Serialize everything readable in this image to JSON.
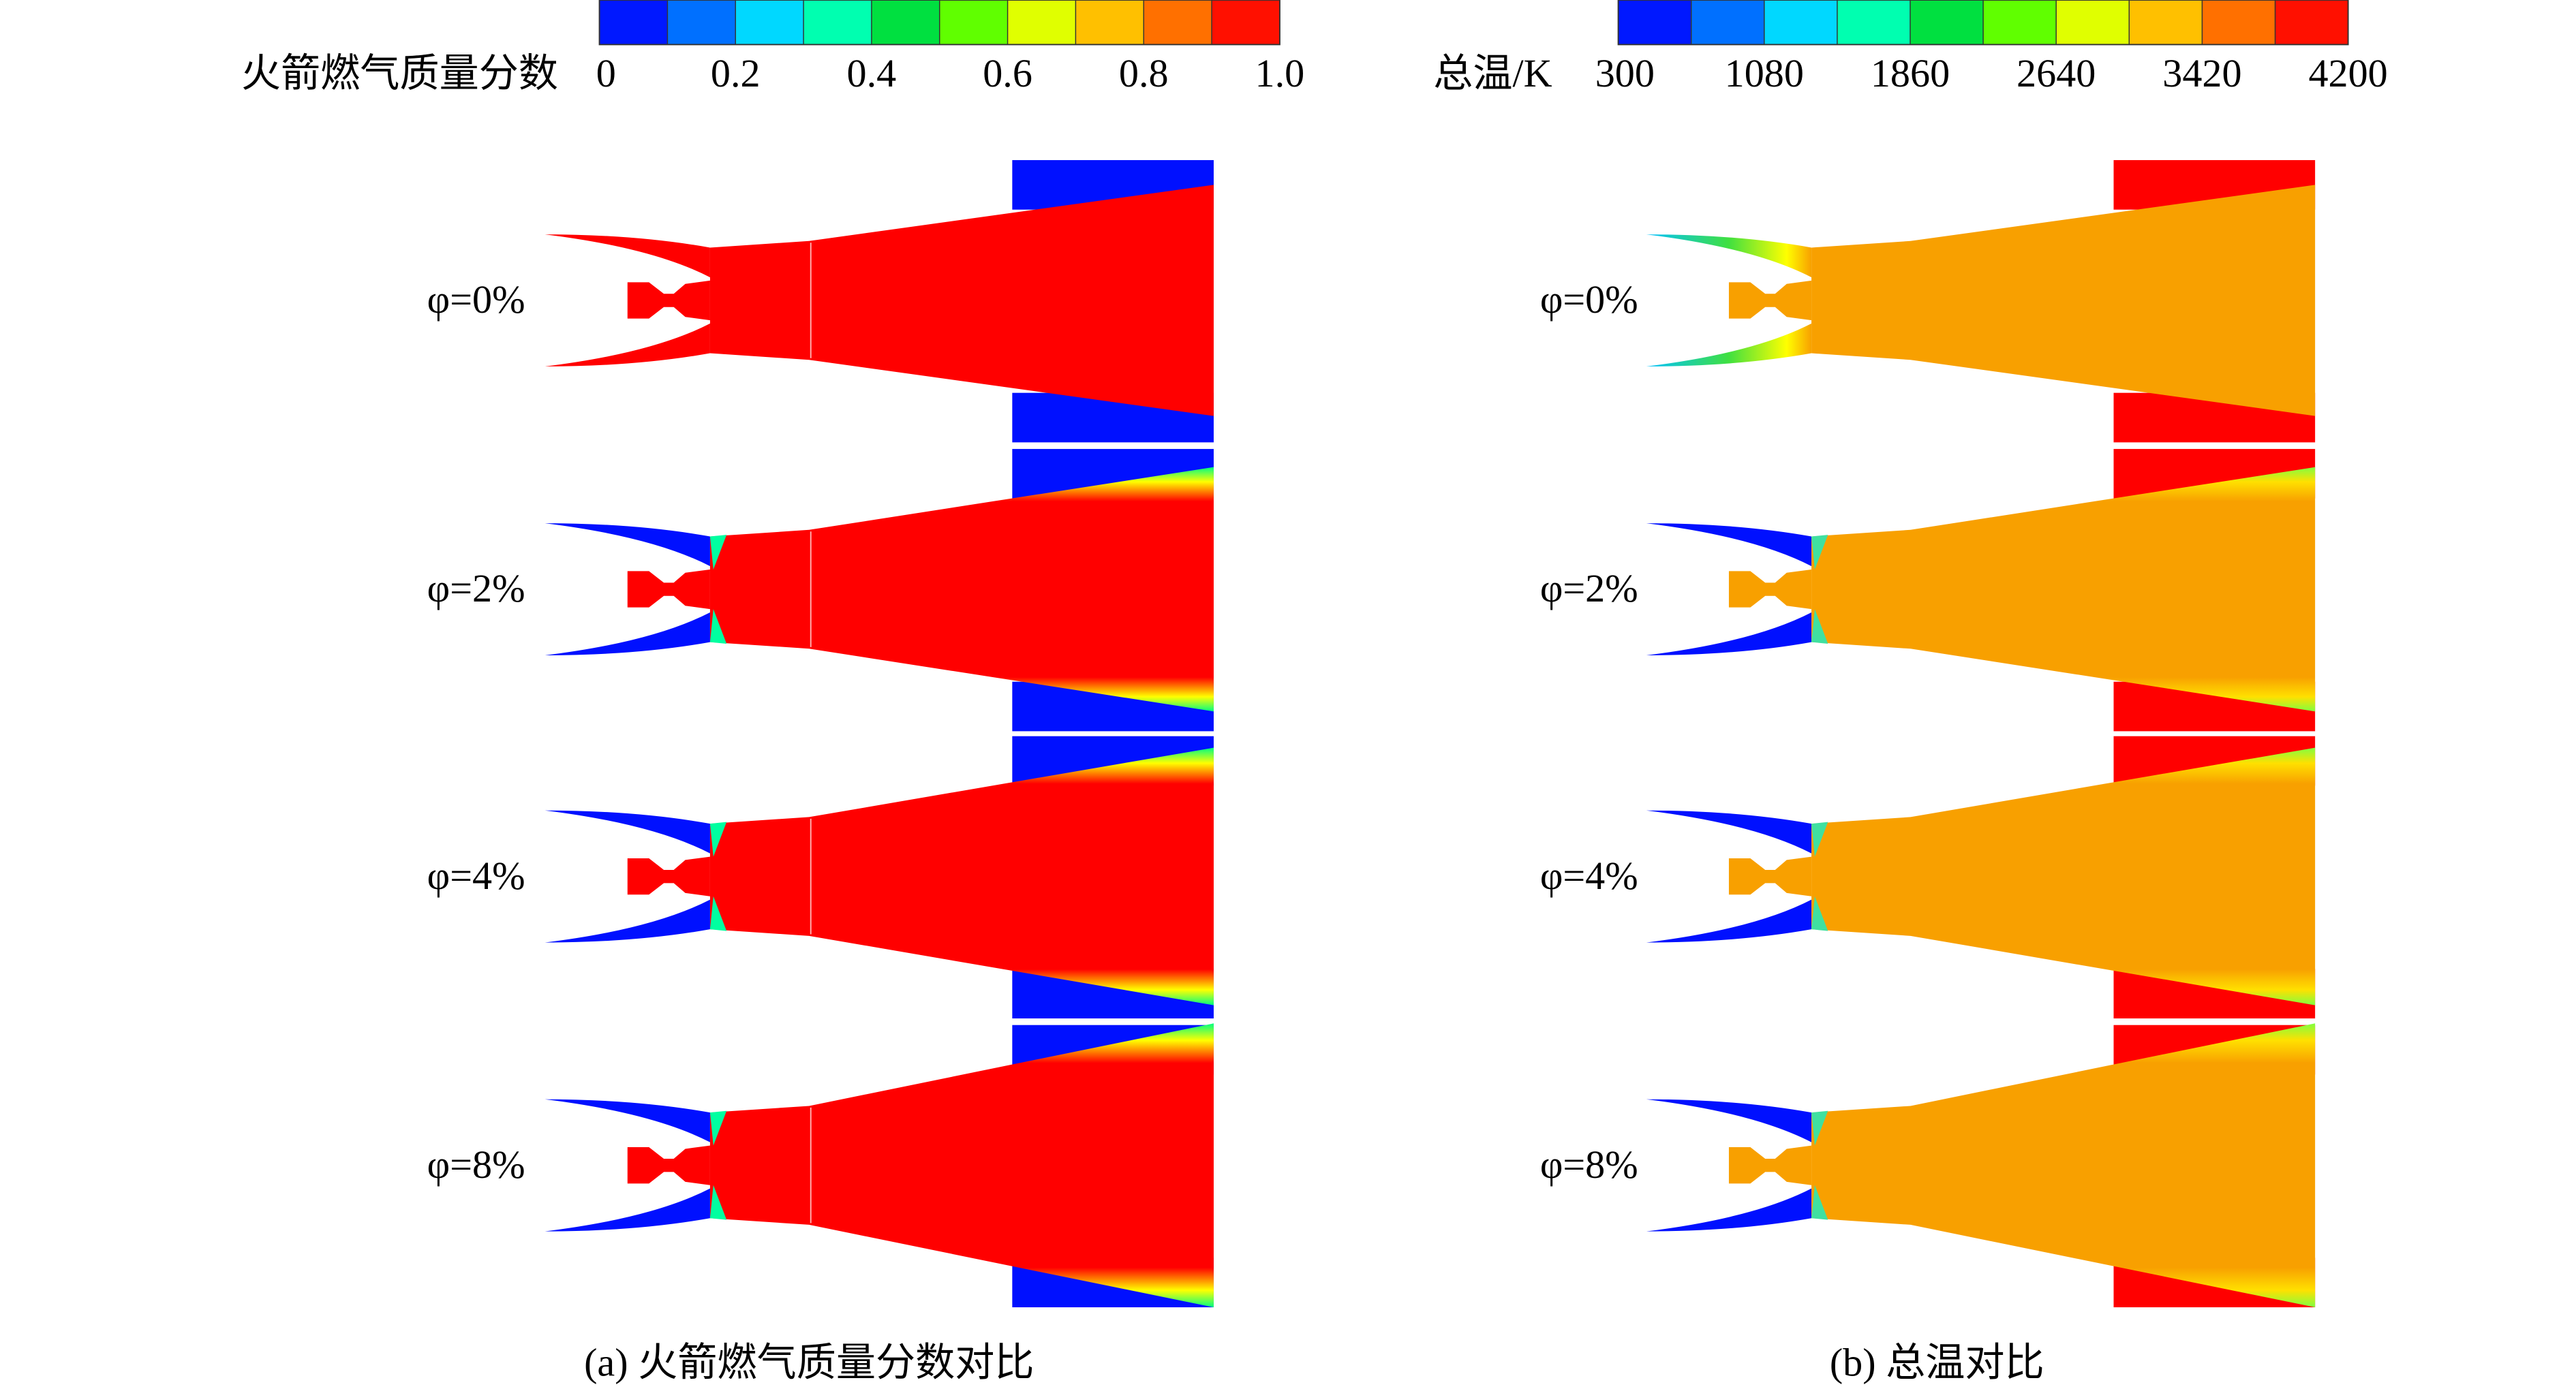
{
  "panels": [
    {
      "colorbar": {
        "label": "火箭燃气质量分数",
        "ticks": [
          "0",
          "0.2",
          "0.4",
          "0.6",
          "0.8",
          "1.0"
        ]
      },
      "cases": [
        "φ=0%",
        "φ=2%",
        "φ=4%",
        "φ=8%"
      ],
      "caption": "(a) 火箭燃气质量分数对比"
    },
    {
      "colorbar": {
        "label": "总温/K",
        "ticks": [
          "300",
          "1080",
          "1860",
          "2640",
          "3420",
          "4200"
        ]
      },
      "cases": [
        "φ=0%",
        "φ=2%",
        "φ=4%",
        "φ=8%"
      ],
      "caption": "(b) 总温对比"
    }
  ]
}
